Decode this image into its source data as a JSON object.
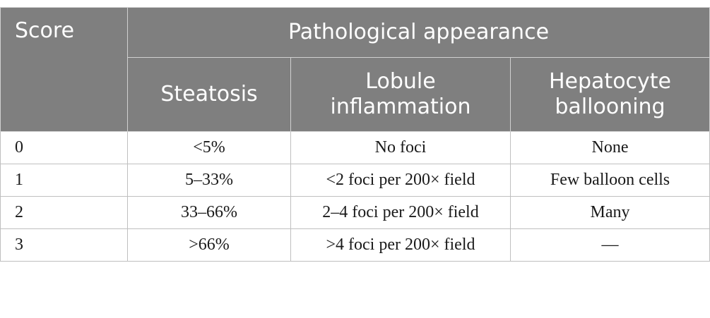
{
  "table": {
    "score_header": "Score",
    "group_header": "Pathological appearance",
    "columns": [
      "Steatosis",
      "Lobule inflammation",
      "Hepatocyte ballooning"
    ],
    "rows": [
      {
        "score": "0",
        "steatosis": "<5%",
        "inflammation": "No foci",
        "ballooning": "None"
      },
      {
        "score": "1",
        "steatosis": "5–33%",
        "inflammation": "<2 foci per 200× field",
        "ballooning": "Few balloon cells"
      },
      {
        "score": "2",
        "steatosis": "33–66%",
        "inflammation": "2–4 foci per 200× field",
        "ballooning": "Many"
      },
      {
        "score": "3",
        "steatosis": ">66%",
        "inflammation": ">4 foci per 200× field",
        "ballooning": "—"
      }
    ]
  },
  "colors": {
    "header_bg": "#7f7f7f",
    "header_text": "#ffffff",
    "border": "#bfbfbf"
  }
}
